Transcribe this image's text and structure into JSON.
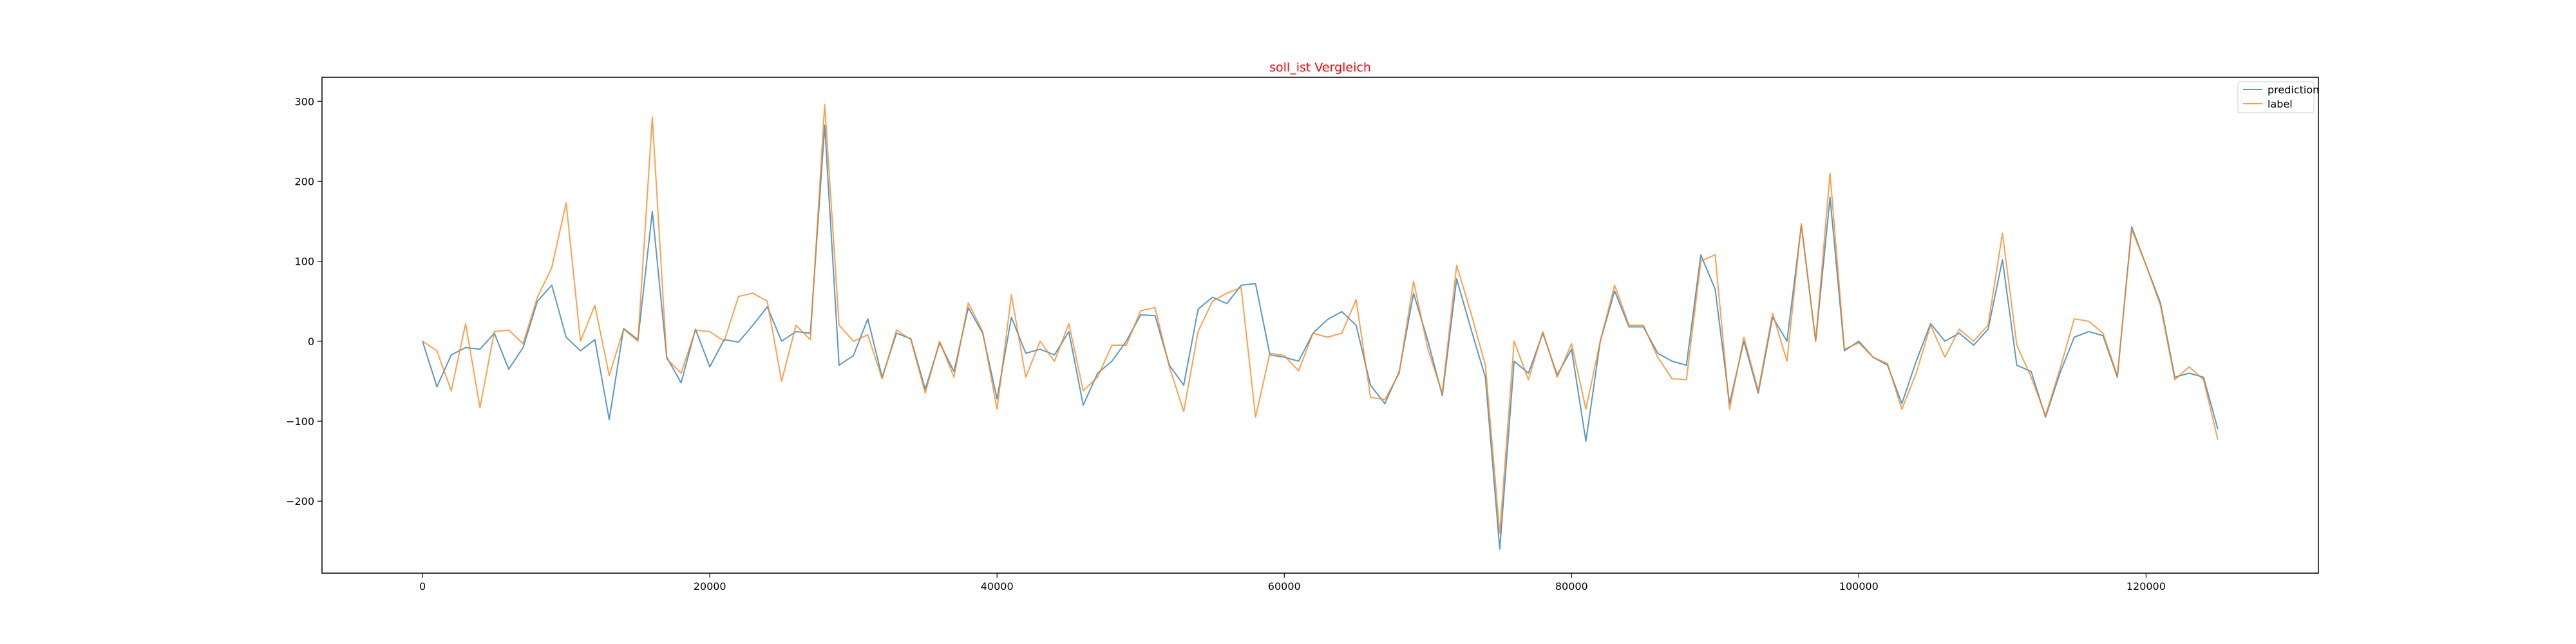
{
  "chart_data": {
    "type": "line",
    "title": "soll_ist Vergleich",
    "title_color": "#ff0000",
    "xlabel": "",
    "ylabel": "",
    "xlim": [
      -7000,
      132000
    ],
    "ylim": [
      -290,
      330
    ],
    "xticks": [
      0,
      20000,
      40000,
      60000,
      80000,
      100000,
      120000
    ],
    "yticks": [
      -200,
      -100,
      0,
      100,
      200,
      300
    ],
    "grid": false,
    "legend_position": "upper right",
    "x_step": 1000,
    "series": [
      {
        "name": "prediction",
        "color": "#1f77b4",
        "values": [
          0,
          -57,
          -17,
          -8,
          -10,
          10,
          -35,
          -8,
          50,
          70,
          5,
          -12,
          2,
          -98,
          16,
          2,
          162,
          -20,
          -52,
          15,
          -32,
          2,
          -1,
          20,
          43,
          0,
          12,
          10,
          270,
          -30,
          -18,
          28,
          -45,
          10,
          3,
          -60,
          -2,
          -38,
          42,
          10,
          -72,
          30,
          -15,
          -10,
          -17,
          12,
          -80,
          -40,
          -25,
          0,
          33,
          32,
          -30,
          -55,
          40,
          55,
          47,
          70,
          72,
          -17,
          -20,
          -25,
          10,
          27,
          37,
          20,
          -55,
          -78,
          -38,
          60,
          0,
          -68,
          78,
          15,
          -45,
          -260,
          -25,
          -40,
          10,
          -42,
          -10,
          -125,
          0,
          63,
          18,
          18,
          -15,
          -25,
          -30,
          108,
          65,
          -78,
          0,
          -65,
          30,
          0,
          145,
          0,
          180,
          -12,
          0,
          -20,
          -30,
          -78,
          -25,
          22,
          0,
          10,
          -5,
          15,
          102,
          -30,
          -38,
          -95,
          -40,
          5,
          12,
          7,
          -45,
          143,
          95,
          48,
          -45,
          -40,
          -45,
          -110
        ]
      },
      {
        "name": "label",
        "color": "#ff7f0e",
        "values": [
          0,
          -12,
          -62,
          22,
          -83,
          12,
          14,
          -3,
          55,
          92,
          173,
          0,
          45,
          -43,
          15,
          0,
          280,
          -22,
          -40,
          14,
          12,
          0,
          56,
          60,
          50,
          -50,
          20,
          2,
          296,
          20,
          0,
          8,
          -47,
          14,
          2,
          -65,
          0,
          -45,
          48,
          12,
          -85,
          58,
          -45,
          0,
          -25,
          22,
          -62,
          -45,
          -5,
          -5,
          38,
          42,
          -32,
          -88,
          12,
          50,
          60,
          67,
          -95,
          -15,
          -18,
          -37,
          10,
          5,
          10,
          52,
          -70,
          -73,
          -40,
          75,
          -10,
          -65,
          95,
          35,
          -30,
          -240,
          0,
          -48,
          12,
          -45,
          -3,
          -85,
          0,
          70,
          20,
          20,
          -20,
          -47,
          -48,
          100,
          108,
          -85,
          5,
          -62,
          35,
          -25,
          147,
          0,
          210,
          -10,
          -2,
          -20,
          -28,
          -85,
          -40,
          20,
          -20,
          15,
          0,
          20,
          135,
          -5,
          -45,
          -93,
          -35,
          28,
          25,
          10,
          -43,
          140,
          95,
          45,
          -48,
          -32,
          -48,
          -123
        ]
      }
    ]
  }
}
